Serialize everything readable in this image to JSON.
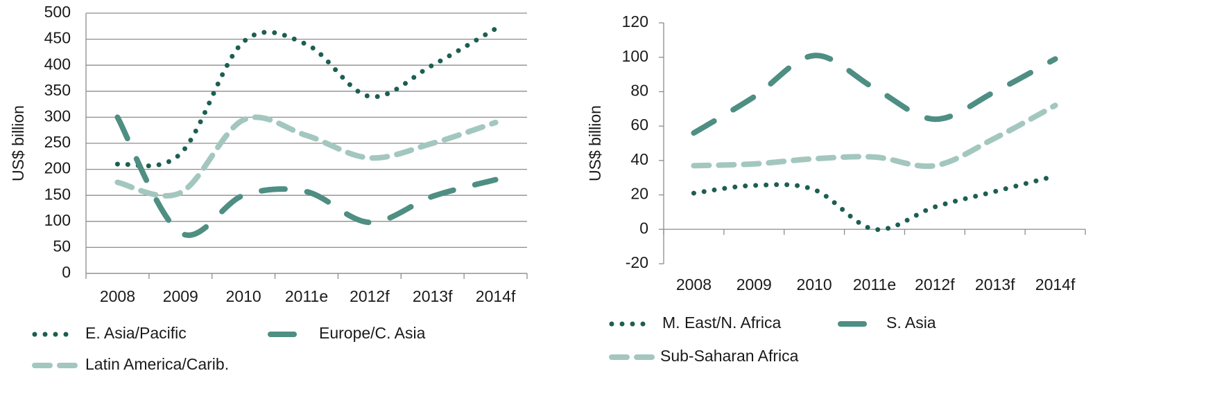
{
  "chart_data": [
    {
      "type": "line",
      "smooth": true,
      "y_label": "US$ billion",
      "categories": [
        "2008",
        "2009",
        "2010",
        "2011e",
        "2012f",
        "2013f",
        "2014f"
      ],
      "ylim": [
        0,
        500
      ],
      "yticks": [
        0,
        50,
        100,
        150,
        200,
        250,
        300,
        350,
        400,
        450,
        500
      ],
      "grid": true,
      "series": [
        {
          "name": "E. Asia/Pacific",
          "color": "#1d5e52",
          "line_style": "dotted",
          "values": [
            210,
            230,
            445,
            440,
            340,
            400,
            470
          ]
        },
        {
          "name": "Europe/C. Asia",
          "color": "#4e8e83",
          "line_style": "long-dashed",
          "values": [
            300,
            78,
            150,
            157,
            98,
            148,
            180
          ]
        },
        {
          "name": "Latin America/Carib.",
          "color": "#a3c7bf",
          "line_style": "dashed",
          "values": [
            175,
            155,
            295,
            265,
            222,
            250,
            290
          ]
        }
      ]
    },
    {
      "type": "line",
      "smooth": true,
      "y_label": "US$ billion",
      "categories": [
        "2008",
        "2009",
        "2010",
        "2011e",
        "2012f",
        "2013f",
        "2014f"
      ],
      "ylim": [
        -20,
        120
      ],
      "yticks": [
        -20,
        0,
        20,
        40,
        60,
        80,
        100,
        120
      ],
      "grid": false,
      "series": [
        {
          "name": "M. East/N. Africa",
          "color": "#1d5e52",
          "line_style": "dotted",
          "values": [
            21,
            25.5,
            23,
            0,
            13,
            22,
            31
          ]
        },
        {
          "name": "S. Asia",
          "color": "#4e8e83",
          "line_style": "long-dashed",
          "values": [
            56,
            77,
            101,
            82,
            64,
            80,
            99
          ]
        },
        {
          "name": "Sub-Saharan Africa",
          "color": "#a3c7bf",
          "line_style": "dashed",
          "values": [
            37,
            38,
            41,
            42,
            37,
            53,
            72
          ]
        }
      ]
    }
  ]
}
